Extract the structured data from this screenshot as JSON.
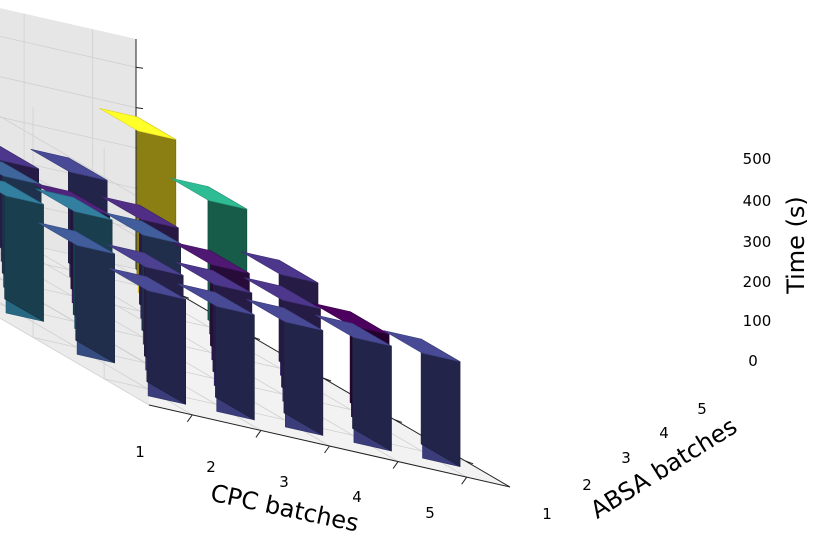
{
  "chart_data": {
    "type": "bar3d",
    "xlabel": "CPC batches",
    "ylabel": "ABSA batches",
    "zlabel": "Time (s)",
    "x_ticks": [
      "1",
      "2",
      "3",
      "4",
      "5"
    ],
    "y_ticks": [
      "1",
      "2",
      "3",
      "4",
      "5"
    ],
    "z_ticks": [
      "0",
      "100",
      "200",
      "300",
      "400",
      "500"
    ],
    "zlim": [
      0,
      570
    ],
    "grid": true,
    "colormap": "viridis",
    "values": [
      [
        260,
        260,
        260,
        260,
        260
      ],
      [
        270,
        255,
        250,
        250,
        225
      ],
      [
        290,
        290,
        270,
        235,
        250
      ],
      [
        330,
        275,
        240,
        245,
        330
      ],
      [
        390,
        380,
        250,
        260,
        400
      ]
    ]
  }
}
